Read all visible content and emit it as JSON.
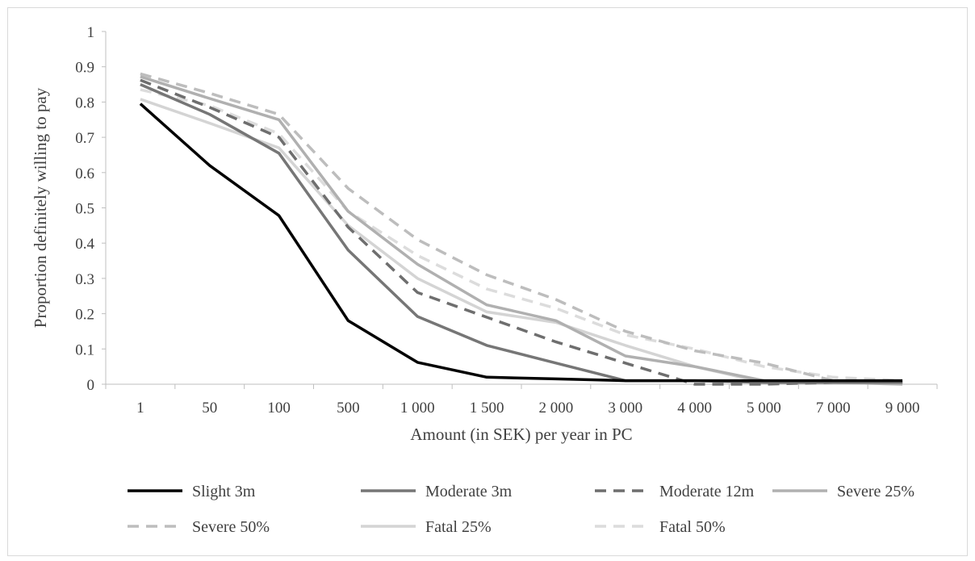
{
  "chart_data": {
    "type": "line",
    "title": "",
    "xlabel": "Amount (in SEK) per year in PC",
    "ylabel": "Proportion definitely willing to pay",
    "categories": [
      "1",
      "50",
      "100",
      "500",
      "1 000",
      "1 500",
      "2 000",
      "3 000",
      "4 000",
      "5 000",
      "7 000",
      "9 000"
    ],
    "ylim": [
      0,
      1
    ],
    "yticks": [
      "0",
      "0.1",
      "0.2",
      "0.3",
      "0.4",
      "0.5",
      "0.6",
      "0.7",
      "0.8",
      "0.9",
      "1"
    ],
    "grid": false,
    "legend_position": "bottom",
    "series": [
      {
        "name": "Slight 3m",
        "color": "#000000",
        "dash": "solid",
        "values": [
          0.795,
          0.62,
          0.478,
          0.18,
          0.062,
          0.02,
          0.015,
          0.01,
          0.01,
          0.01,
          0.01,
          0.01
        ]
      },
      {
        "name": "Moderate 3m",
        "color": "#767676",
        "dash": "solid",
        "values": [
          0.85,
          0.765,
          0.655,
          0.38,
          0.192,
          0.11,
          0.06,
          0.01,
          0.01,
          0.005,
          0.005,
          0.005
        ]
      },
      {
        "name": "Moderate 12m",
        "color": "#6e6e6e",
        "dash": "dashed",
        "values": [
          0.862,
          0.785,
          0.7,
          0.445,
          0.26,
          0.19,
          0.12,
          0.06,
          0.0,
          0.0,
          0.005,
          0.005
        ]
      },
      {
        "name": "Severe 25%",
        "color": "#b0b0b0",
        "dash": "solid",
        "values": [
          0.872,
          0.81,
          0.75,
          0.49,
          0.34,
          0.225,
          0.18,
          0.08,
          0.05,
          0.01,
          0.005,
          0.0
        ]
      },
      {
        "name": "Severe 50%",
        "color": "#bdbdbd",
        "dash": "dashed",
        "values": [
          0.88,
          0.825,
          0.765,
          0.555,
          0.41,
          0.31,
          0.24,
          0.15,
          0.095,
          0.06,
          0.01,
          0.005
        ]
      },
      {
        "name": "Fatal 25%",
        "color": "#d4d4d4",
        "dash": "solid",
        "values": [
          0.808,
          0.74,
          0.67,
          0.45,
          0.3,
          0.205,
          0.175,
          0.11,
          0.05,
          0.005,
          0.005,
          0.005
        ]
      },
      {
        "name": "Fatal 50%",
        "color": "#dcdcdc",
        "dash": "dashed",
        "values": [
          0.835,
          0.79,
          0.71,
          0.49,
          0.365,
          0.27,
          0.215,
          0.14,
          0.1,
          0.05,
          0.02,
          0.01
        ]
      }
    ]
  }
}
